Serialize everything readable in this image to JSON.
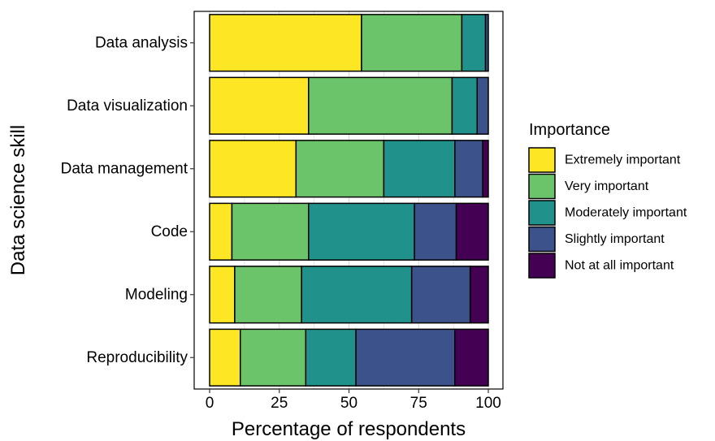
{
  "chart_data": {
    "type": "bar",
    "orientation": "horizontal",
    "stacked": true,
    "xlabel": "Percentage of respondents",
    "ylabel": "Data science skill",
    "xlim": [
      0,
      100
    ],
    "xticks": [
      0,
      25,
      50,
      75,
      100
    ],
    "grid": true,
    "legend_title": "Importance",
    "legend_position": "right",
    "categories": [
      "Data analysis",
      "Data visualization",
      "Data management",
      "Code",
      "Modeling",
      "Reproducibility"
    ],
    "series": [
      {
        "name": "Extremely important",
        "color": "#FDE725",
        "values": [
          54.5,
          35.5,
          31,
          8,
          9,
          11
        ]
      },
      {
        "name": "Very important",
        "color": "#6CC46A",
        "values": [
          36,
          51.5,
          31.5,
          27.5,
          24,
          23.5
        ]
      },
      {
        "name": "Moderately important",
        "color": "#21918C",
        "values": [
          8.5,
          9,
          25.5,
          38,
          39.5,
          18
        ]
      },
      {
        "name": "Slightly important",
        "color": "#3B528B",
        "values": [
          1,
          4,
          10,
          15,
          21,
          35.5
        ]
      },
      {
        "name": "Not at all important",
        "color": "#440154",
        "values": [
          0,
          0,
          2,
          11.5,
          6.5,
          12
        ]
      }
    ]
  }
}
